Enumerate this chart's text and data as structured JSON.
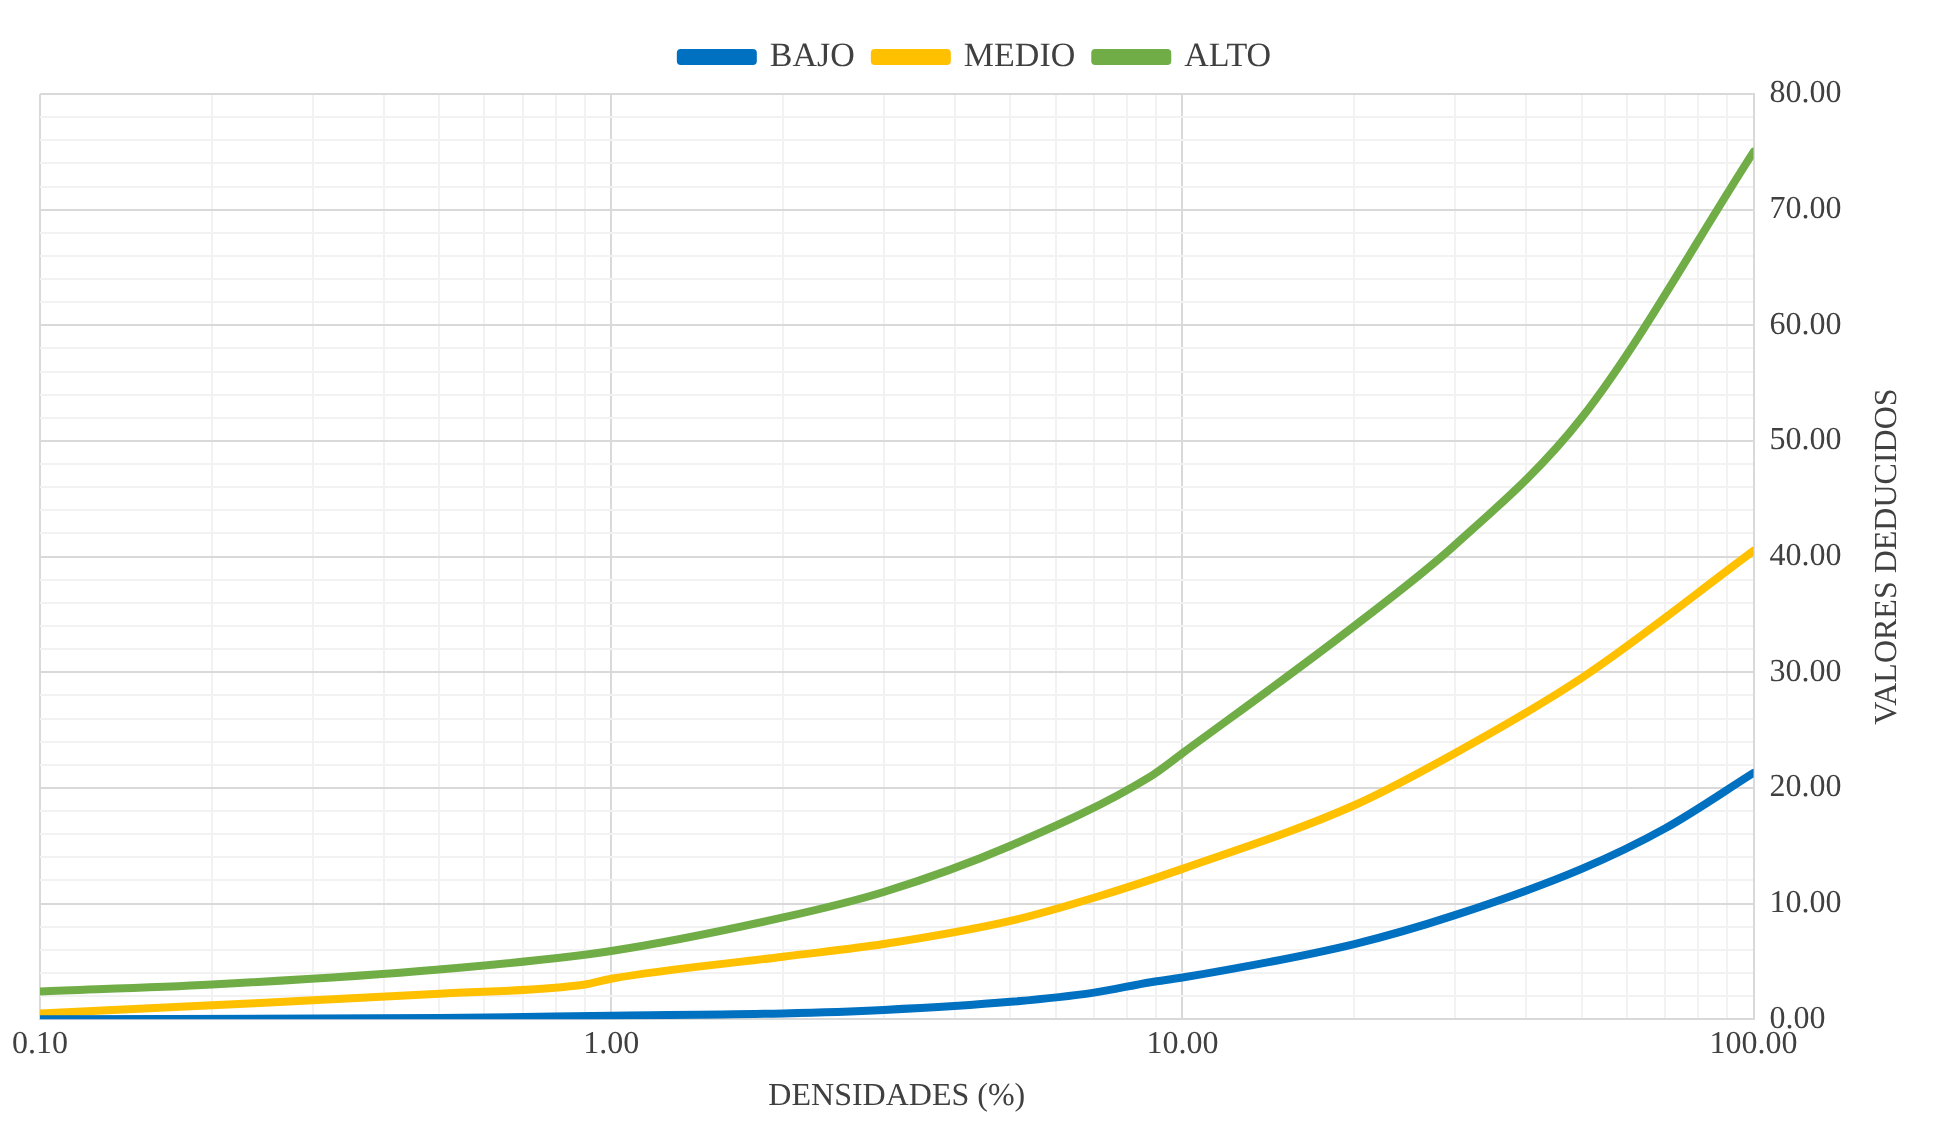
{
  "chart_data": {
    "type": "line",
    "xlabel": "DENSIDADES (%)",
    "ylabel": "VALORES DEDUCIDOS",
    "log": "x",
    "grid": true,
    "legend": "top",
    "marker": "none",
    "line_style": "solid",
    "xlim": [
      0.1,
      100
    ],
    "ylim": [
      0,
      80
    ],
    "xticks": [
      {
        "value": 0.1,
        "label": "0.10"
      },
      {
        "value": 0.2,
        "label": null
      },
      {
        "value": 0.3,
        "label": null
      },
      {
        "value": 0.4,
        "label": null
      },
      {
        "value": 0.5,
        "label": null
      },
      {
        "value": 0.6,
        "label": null
      },
      {
        "value": 0.7,
        "label": null
      },
      {
        "value": 0.8,
        "label": null
      },
      {
        "value": 0.9,
        "label": null
      },
      {
        "value": 1,
        "label": "1.00"
      },
      {
        "value": 2,
        "label": null
      },
      {
        "value": 3,
        "label": null
      },
      {
        "value": 4,
        "label": null
      },
      {
        "value": 5,
        "label": null
      },
      {
        "value": 6,
        "label": null
      },
      {
        "value": 7,
        "label": null
      },
      {
        "value": 8,
        "label": null
      },
      {
        "value": 9,
        "label": null
      },
      {
        "value": 10,
        "label": "10.00"
      },
      {
        "value": 20,
        "label": null
      },
      {
        "value": 30,
        "label": null
      },
      {
        "value": 40,
        "label": null
      },
      {
        "value": 50,
        "label": null
      },
      {
        "value": 60,
        "label": null
      },
      {
        "value": 70,
        "label": null
      },
      {
        "value": 80,
        "label": null
      },
      {
        "value": 90,
        "label": null
      },
      {
        "value": 100,
        "label": "100.00"
      }
    ],
    "yticks": [
      {
        "value": 0,
        "label": "0.00"
      },
      {
        "value": 2,
        "label": null
      },
      {
        "value": 4,
        "label": null
      },
      {
        "value": 6,
        "label": null
      },
      {
        "value": 8,
        "label": null
      },
      {
        "value": 10,
        "label": "10.00"
      },
      {
        "value": 12,
        "label": null
      },
      {
        "value": 14,
        "label": null
      },
      {
        "value": 16,
        "label": null
      },
      {
        "value": 18,
        "label": null
      },
      {
        "value": 20,
        "label": "20.00"
      },
      {
        "value": 22,
        "label": null
      },
      {
        "value": 24,
        "label": null
      },
      {
        "value": 26,
        "label": null
      },
      {
        "value": 28,
        "label": null
      },
      {
        "value": 30,
        "label": "30.00"
      },
      {
        "value": 32,
        "label": null
      },
      {
        "value": 34,
        "label": null
      },
      {
        "value": 36,
        "label": null
      },
      {
        "value": 38,
        "label": null
      },
      {
        "value": 40,
        "label": "40.00"
      },
      {
        "value": 42,
        "label": null
      },
      {
        "value": 44,
        "label": null
      },
      {
        "value": 46,
        "label": null
      },
      {
        "value": 48,
        "label": null
      },
      {
        "value": 50,
        "label": "50.00"
      },
      {
        "value": 52,
        "label": null
      },
      {
        "value": 54,
        "label": null
      },
      {
        "value": 56,
        "label": null
      },
      {
        "value": 58,
        "label": null
      },
      {
        "value": 60,
        "label": "60.00"
      },
      {
        "value": 62,
        "label": null
      },
      {
        "value": 64,
        "label": null
      },
      {
        "value": 66,
        "label": null
      },
      {
        "value": 68,
        "label": null
      },
      {
        "value": 70,
        "label": "70.00"
      },
      {
        "value": 72,
        "label": null
      },
      {
        "value": 74,
        "label": null
      },
      {
        "value": 76,
        "label": null
      },
      {
        "value": 78,
        "label": null
      },
      {
        "value": 80,
        "label": "80.00"
      }
    ],
    "series": [
      {
        "name": "BAJO",
        "color": "#0070c0",
        "x": [
          0.1,
          0.5,
          1,
          2,
          3,
          5,
          7,
          8.8,
          10,
          20,
          30,
          50,
          70,
          100
        ],
        "values": [
          0,
          0.1,
          0.3,
          0.5,
          0.8,
          1.5,
          2.3,
          3.2,
          3.6,
          6.5,
          9,
          13,
          16.5,
          21.3
        ]
      },
      {
        "name": "MEDIO",
        "color": "#ffc000",
        "x": [
          0.1,
          0.2,
          0.5,
          0.9,
          1,
          2,
          3,
          5,
          7,
          10,
          20,
          30,
          50,
          100
        ],
        "values": [
          0.5,
          1.2,
          2.2,
          3,
          3.5,
          5.4,
          6.5,
          8.5,
          10.5,
          13,
          18.5,
          23,
          29.5,
          40.5
        ]
      },
      {
        "name": "ALTO",
        "color": "#70ad47",
        "x": [
          0.1,
          0.2,
          0.5,
          1,
          2,
          3,
          5,
          8.8,
          10,
          20,
          30,
          50,
          100
        ],
        "values": [
          2.4,
          3,
          4.3,
          5.9,
          8.8,
          11,
          15,
          21,
          23,
          34,
          41,
          52,
          75
        ]
      }
    ]
  }
}
